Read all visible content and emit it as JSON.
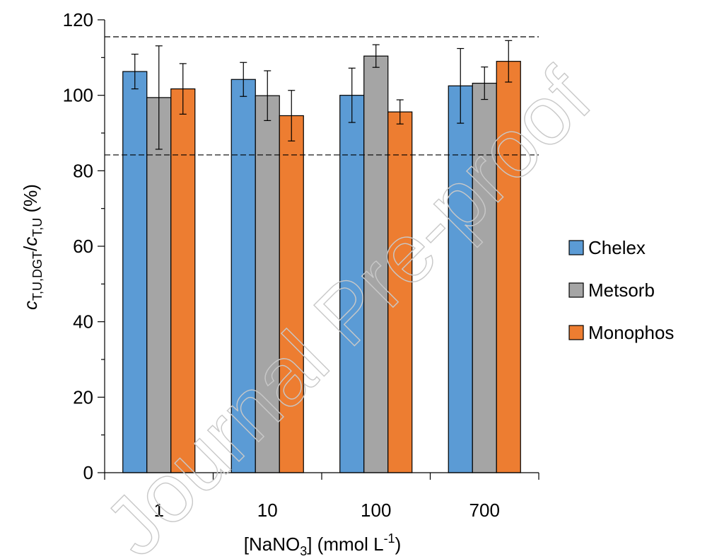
{
  "watermark": "Journal Pre-proof",
  "colors": {
    "Chelex": "#5b9bd5",
    "Metsorb": "#a5a5a5",
    "Monophos": "#ed7d31",
    "edge": "#000000",
    "reference_line": "#000000"
  },
  "chart_data": {
    "type": "bar",
    "xlabel": {
      "prefix": "[NaNO",
      "sub": "3",
      "middle": "] (mmol L",
      "sup": "-1",
      "suffix": ")"
    },
    "ylabel": {
      "c1": "c",
      "sub1": "T,U,DGT",
      "slash": "/",
      "c2": "c",
      "sub2": "T,U",
      "suffix": " (%)"
    },
    "categories": [
      "1",
      "10",
      "100",
      "700"
    ],
    "ylim": [
      0,
      120
    ],
    "yticks": [
      "0",
      "20",
      "40",
      "60",
      "80",
      "100",
      "120"
    ],
    "series": [
      {
        "name": "Chelex",
        "values": [
          106.3,
          104.2,
          100.0,
          102.5
        ],
        "errors": [
          4.6,
          4.5,
          7.2,
          9.9
        ]
      },
      {
        "name": "Metsorb",
        "values": [
          99.4,
          99.9,
          110.4,
          103.2
        ],
        "errors": [
          13.7,
          6.6,
          3.0,
          4.3
        ]
      },
      {
        "name": "Monophos",
        "values": [
          101.7,
          94.6,
          95.6,
          109.0
        ],
        "errors": [
          6.7,
          6.7,
          3.2,
          5.5
        ]
      }
    ],
    "reference_lines": [
      115.5,
      84.2
    ],
    "grid": false,
    "legend": "right"
  }
}
